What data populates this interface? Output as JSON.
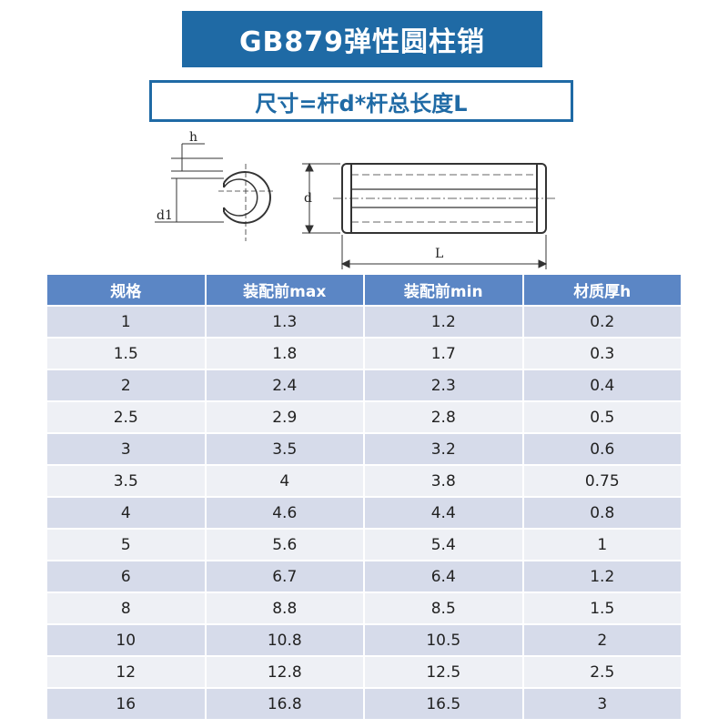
{
  "title": "GB879弹性圆柱销",
  "subtitle": "尺寸=杆d*杆总长度L",
  "diagram": {
    "label_h": "h",
    "label_d1": "d1",
    "label_d": "d",
    "label_L": "L"
  },
  "table": {
    "headers": [
      "规格",
      "装配前max",
      "装配前min",
      "材质厚h"
    ],
    "rows": [
      [
        "1",
        "1.3",
        "1.2",
        "0.2"
      ],
      [
        "1.5",
        "1.8",
        "1.7",
        "0.3"
      ],
      [
        "2",
        "2.4",
        "2.3",
        "0.4"
      ],
      [
        "2.5",
        "2.9",
        "2.8",
        "0.5"
      ],
      [
        "3",
        "3.5",
        "3.2",
        "0.6"
      ],
      [
        "3.5",
        "4",
        "3.8",
        "0.75"
      ],
      [
        "4",
        "4.6",
        "4.4",
        "0.8"
      ],
      [
        "5",
        "5.6",
        "5.4",
        "1"
      ],
      [
        "6",
        "6.7",
        "6.4",
        "1.2"
      ],
      [
        "8",
        "8.8",
        "8.5",
        "1.5"
      ],
      [
        "10",
        "10.8",
        "10.5",
        "2"
      ],
      [
        "12",
        "12.8",
        "12.5",
        "2.5"
      ],
      [
        "16",
        "16.8",
        "16.5",
        "3"
      ]
    ]
  },
  "colors": {
    "title_bg": "#1f6aa5",
    "header_bg": "#5b86c5",
    "row_odd": "#d6dbea",
    "row_even": "#eef0f5"
  }
}
